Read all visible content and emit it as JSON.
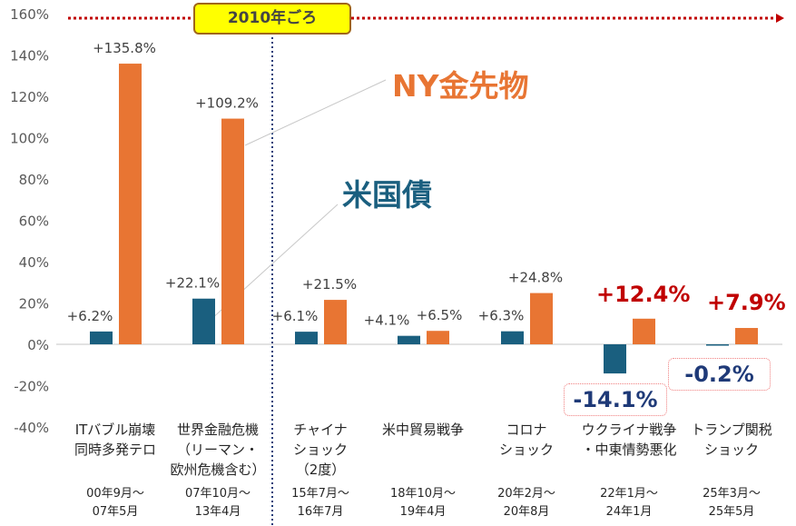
{
  "chart_data": {
    "type": "bar",
    "ylim": [
      -40,
      160
    ],
    "yticks": [
      "160%",
      "140%",
      "120%",
      "100%",
      "80%",
      "60%",
      "40%",
      "20%",
      "0%",
      "-20%",
      "-40%"
    ],
    "grid": false,
    "categories": [
      {
        "label": [
          "ITバブル崩壊",
          "同時多発テロ"
        ],
        "period": [
          "00年9月～",
          "07年5月"
        ]
      },
      {
        "label": [
          "世界金融危機",
          "（リーマン・",
          "欧州危機含む）"
        ],
        "period": [
          "07年10月～",
          "13年4月"
        ]
      },
      {
        "label": [
          "チャイナ",
          "ショック",
          "（2度）"
        ],
        "period": [
          "15年7月～",
          "16年7月"
        ]
      },
      {
        "label": [
          "米中貿易戦争"
        ],
        "period": [
          "18年10月～",
          "19年4月"
        ]
      },
      {
        "label": [
          "コロナ",
          "ショック"
        ],
        "period": [
          "20年2月～",
          "20年8月"
        ]
      },
      {
        "label": [
          "ウクライナ戦争",
          "・中東情勢悪化"
        ],
        "period": [
          "22年1月～",
          "24年1月"
        ]
      },
      {
        "label": [
          "トランプ関税",
          "ショック"
        ],
        "period": [
          "25年3月～",
          "25年5月"
        ]
      }
    ],
    "series": [
      {
        "name": "米国債",
        "color": "#1a5f7f",
        "values": [
          6.2,
          22.1,
          6.1,
          4.1,
          6.3,
          -14.1,
          -0.2
        ],
        "labels": [
          "+6.2%",
          "+22.1%",
          "+6.1%",
          "+4.1%",
          "+6.3%",
          "-14.1%",
          "-0.2%"
        ]
      },
      {
        "name": "NY金先物",
        "color": "#e87533",
        "values": [
          135.8,
          109.2,
          21.5,
          6.5,
          24.8,
          12.4,
          7.9
        ],
        "labels": [
          "+135.8%",
          "+109.2%",
          "+21.5%",
          "+6.5%",
          "+24.8%",
          "+12.4%",
          "+7.9%"
        ]
      }
    ],
    "annotations": {
      "era": "2010年ごろ"
    }
  }
}
